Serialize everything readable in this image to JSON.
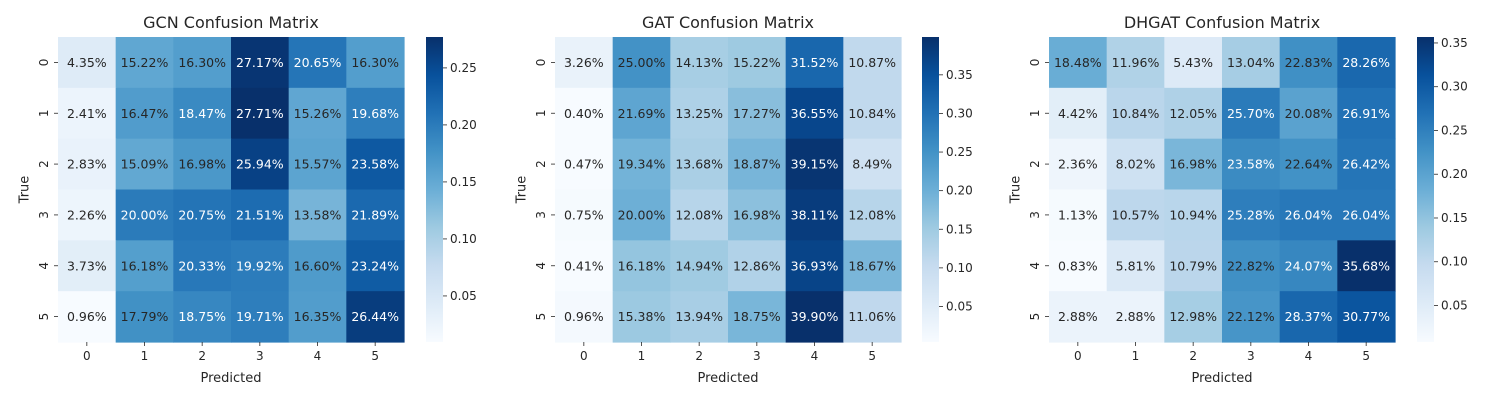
{
  "chart_data": [
    {
      "type": "heatmap",
      "title": "GCN Confusion Matrix",
      "xlabel": "Predicted",
      "ylabel": "True",
      "x_categories": [
        "0",
        "1",
        "2",
        "3",
        "4",
        "5"
      ],
      "y_categories": [
        "0",
        "1",
        "2",
        "3",
        "4",
        "5"
      ],
      "values": [
        [
          0.0435,
          0.1522,
          0.163,
          0.2717,
          0.2065,
          0.163
        ],
        [
          0.0241,
          0.1647,
          0.1847,
          0.2771,
          0.1526,
          0.1968
        ],
        [
          0.0283,
          0.1509,
          0.1698,
          0.2594,
          0.1557,
          0.2358
        ],
        [
          0.0226,
          0.2,
          0.2075,
          0.2151,
          0.1358,
          0.2189
        ],
        [
          0.0373,
          0.1618,
          0.2033,
          0.1992,
          0.166,
          0.2324
        ],
        [
          0.0096,
          0.1779,
          0.1875,
          0.1971,
          0.1635,
          0.2644
        ]
      ],
      "labels": [
        [
          "4.35%",
          "15.22%",
          "16.30%",
          "27.17%",
          "20.65%",
          "16.30%"
        ],
        [
          "2.41%",
          "16.47%",
          "18.47%",
          "27.71%",
          "15.26%",
          "19.68%"
        ],
        [
          "2.83%",
          "15.09%",
          "16.98%",
          "25.94%",
          "15.57%",
          "23.58%"
        ],
        [
          "2.26%",
          "20.00%",
          "20.75%",
          "21.51%",
          "13.58%",
          "21.89%"
        ],
        [
          "3.73%",
          "16.18%",
          "20.33%",
          "19.92%",
          "16.60%",
          "23.24%"
        ],
        [
          "0.96%",
          "17.79%",
          "18.75%",
          "19.71%",
          "16.35%",
          "26.44%"
        ]
      ],
      "vmin": 0.0096,
      "vmax": 0.2771,
      "colorbar_ticks": [
        {
          "value": 0.05,
          "label": "0.05"
        },
        {
          "value": 0.1,
          "label": "0.10"
        },
        {
          "value": 0.15,
          "label": "0.15"
        },
        {
          "value": 0.2,
          "label": "0.20"
        },
        {
          "value": 0.25,
          "label": "0.25"
        }
      ],
      "colormap": "Blues"
    },
    {
      "type": "heatmap",
      "title": "GAT Confusion Matrix",
      "xlabel": "Predicted",
      "ylabel": "True",
      "x_categories": [
        "0",
        "1",
        "2",
        "3",
        "4",
        "5"
      ],
      "y_categories": [
        "0",
        "1",
        "2",
        "3",
        "4",
        "5"
      ],
      "values": [
        [
          0.0326,
          0.25,
          0.1413,
          0.1522,
          0.3152,
          0.1087
        ],
        [
          0.004,
          0.2169,
          0.1325,
          0.1727,
          0.3655,
          0.1084
        ],
        [
          0.0047,
          0.1934,
          0.1368,
          0.1887,
          0.3915,
          0.0849
        ],
        [
          0.0075,
          0.2,
          0.1208,
          0.1698,
          0.3811,
          0.1208
        ],
        [
          0.0041,
          0.1618,
          0.1494,
          0.1286,
          0.3693,
          0.1867
        ],
        [
          0.0096,
          0.1538,
          0.1394,
          0.1875,
          0.399,
          0.1106
        ]
      ],
      "labels": [
        [
          "3.26%",
          "25.00%",
          "14.13%",
          "15.22%",
          "31.52%",
          "10.87%"
        ],
        [
          "0.40%",
          "21.69%",
          "13.25%",
          "17.27%",
          "36.55%",
          "10.84%"
        ],
        [
          "0.47%",
          "19.34%",
          "13.68%",
          "18.87%",
          "39.15%",
          "8.49%"
        ],
        [
          "0.75%",
          "20.00%",
          "12.08%",
          "16.98%",
          "38.11%",
          "12.08%"
        ],
        [
          "0.41%",
          "16.18%",
          "14.94%",
          "12.86%",
          "36.93%",
          "18.67%"
        ],
        [
          "0.96%",
          "15.38%",
          "13.94%",
          "18.75%",
          "39.90%",
          "11.06%"
        ]
      ],
      "vmin": 0.004,
      "vmax": 0.399,
      "colorbar_ticks": [
        {
          "value": 0.05,
          "label": "0.05"
        },
        {
          "value": 0.1,
          "label": "0.10"
        },
        {
          "value": 0.15,
          "label": "0.15"
        },
        {
          "value": 0.2,
          "label": "0.20"
        },
        {
          "value": 0.25,
          "label": "0.25"
        },
        {
          "value": 0.3,
          "label": "0.30"
        },
        {
          "value": 0.35,
          "label": "0.35"
        }
      ],
      "colormap": "Blues"
    },
    {
      "type": "heatmap",
      "title": "DHGAT Confusion Matrix",
      "xlabel": "Predicted",
      "ylabel": "True",
      "x_categories": [
        "0",
        "1",
        "2",
        "3",
        "4",
        "5"
      ],
      "y_categories": [
        "0",
        "1",
        "2",
        "3",
        "4",
        "5"
      ],
      "values": [
        [
          0.1848,
          0.1196,
          0.0543,
          0.1304,
          0.2283,
          0.2826
        ],
        [
          0.0442,
          0.1084,
          0.1205,
          0.257,
          0.2008,
          0.2691
        ],
        [
          0.0236,
          0.0802,
          0.1698,
          0.2358,
          0.2264,
          0.2642
        ],
        [
          0.0113,
          0.1057,
          0.1094,
          0.2528,
          0.2604,
          0.2604
        ],
        [
          0.0083,
          0.0581,
          0.1079,
          0.2282,
          0.2407,
          0.3568
        ],
        [
          0.0288,
          0.0288,
          0.1298,
          0.2212,
          0.2837,
          0.3077
        ]
      ],
      "labels": [
        [
          "18.48%",
          "11.96%",
          "5.43%",
          "13.04%",
          "22.83%",
          "28.26%"
        ],
        [
          "4.42%",
          "10.84%",
          "12.05%",
          "25.70%",
          "20.08%",
          "26.91%"
        ],
        [
          "2.36%",
          "8.02%",
          "16.98%",
          "23.58%",
          "22.64%",
          "26.42%"
        ],
        [
          "1.13%",
          "10.57%",
          "10.94%",
          "25.28%",
          "26.04%",
          "26.04%"
        ],
        [
          "0.83%",
          "5.81%",
          "10.79%",
          "22.82%",
          "24.07%",
          "35.68%"
        ],
        [
          "2.88%",
          "2.88%",
          "12.98%",
          "22.12%",
          "28.37%",
          "30.77%"
        ]
      ],
      "vmin": 0.0083,
      "vmax": 0.3568,
      "colorbar_ticks": [
        {
          "value": 0.05,
          "label": "0.05"
        },
        {
          "value": 0.1,
          "label": "0.10"
        },
        {
          "value": 0.15,
          "label": "0.15"
        },
        {
          "value": 0.2,
          "label": "0.20"
        },
        {
          "value": 0.25,
          "label": "0.25"
        },
        {
          "value": 0.3,
          "label": "0.30"
        },
        {
          "value": 0.35,
          "label": "0.35"
        }
      ],
      "colormap": "Blues"
    }
  ]
}
